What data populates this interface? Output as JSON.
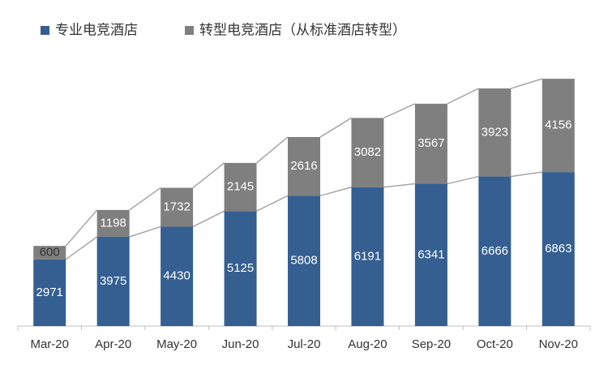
{
  "chart_data": {
    "type": "stacked_bar",
    "categories": [
      "Mar-20",
      "Apr-20",
      "May-20",
      "Jun-20",
      "Jul-20",
      "Aug-20",
      "Sep-20",
      "Oct-20",
      "Nov-20"
    ],
    "series": [
      {
        "name": "专业电竞酒店",
        "color": "#355f91",
        "values": [
          2971,
          3975,
          4430,
          5125,
          5808,
          6191,
          6341,
          6666,
          6863
        ]
      },
      {
        "name": "转型电竞酒店（从标准酒店转型）",
        "color": "#7f7f7f",
        "values": [
          600,
          1198,
          1732,
          2145,
          2616,
          3082,
          3567,
          3923,
          4156
        ]
      }
    ],
    "ylim": [
      0,
      12000
    ]
  }
}
